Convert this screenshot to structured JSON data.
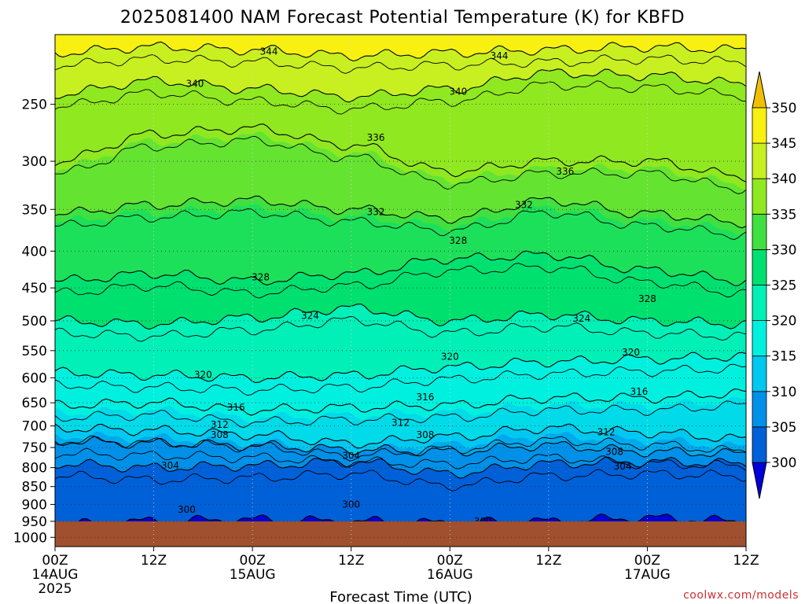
{
  "chart_data": {
    "type": "heatmap",
    "title": "2025081400 NAM Forecast Potential Temperature (K) for KBFD",
    "xlabel": "Forecast Time (UTC)",
    "ylabel": "",
    "credit": "coolwx.com/models",
    "x_ticks": [
      {
        "hour": 0,
        "line1": "00Z",
        "line2": "14AUG",
        "line3": "2025"
      },
      {
        "hour": 12,
        "line1": "12Z",
        "line2": "",
        "line3": ""
      },
      {
        "hour": 24,
        "line1": "00Z",
        "line2": "15AUG",
        "line3": ""
      },
      {
        "hour": 36,
        "line1": "12Z",
        "line2": "",
        "line3": ""
      },
      {
        "hour": 48,
        "line1": "00Z",
        "line2": "16AUG",
        "line3": ""
      },
      {
        "hour": 60,
        "line1": "12Z",
        "line2": "",
        "line3": ""
      },
      {
        "hour": 72,
        "line1": "00Z",
        "line2": "17AUG",
        "line3": ""
      },
      {
        "hour": 84,
        "line1": "12Z",
        "line2": "",
        "line3": ""
      }
    ],
    "xlim": [
      0,
      84
    ],
    "y_ticks": [
      250,
      300,
      350,
      400,
      450,
      500,
      550,
      600,
      650,
      700,
      750,
      800,
      850,
      900,
      950,
      1000
    ],
    "ylim_hpa": [
      200,
      1030
    ],
    "y_scale": "log",
    "ground_level_hpa": 950,
    "colorbar": {
      "labels": [
        300,
        305,
        310,
        315,
        320,
        325,
        330,
        335,
        340,
        345,
        350
      ],
      "colors": [
        "#0000d8",
        "#0060d8",
        "#0090e8",
        "#00c8f0",
        "#00f0e0",
        "#00f0b8",
        "#00e070",
        "#40e040",
        "#90e820",
        "#c8ef20",
        "#f8f010",
        "#f0c000"
      ]
    },
    "series": [
      {
        "level": 300,
        "values": [
          960,
          950,
          945,
          950,
          955,
          950,
          940,
          950
        ]
      },
      {
        "level": 304,
        "values": [
          790,
          800,
          795,
          785,
          815,
          790,
          785,
          790
        ]
      },
      {
        "level": 308,
        "values": [
          735,
          740,
          745,
          755,
          760,
          745,
          760,
          765
        ]
      },
      {
        "level": 312,
        "values": [
          705,
          710,
          720,
          740,
          725,
          705,
          715,
          730
        ]
      },
      {
        "level": 316,
        "values": [
          655,
          650,
          665,
          660,
          655,
          640,
          640,
          630
        ]
      },
      {
        "level": 320,
        "values": [
          590,
          595,
          600,
          595,
          580,
          570,
          565,
          560
        ]
      },
      {
        "level": 324,
        "values": [
          500,
          505,
          495,
          480,
          500,
          490,
          500,
          505
        ]
      },
      {
        "level": 328,
        "values": [
          440,
          430,
          440,
          430,
          410,
          405,
          425,
          440
        ]
      },
      {
        "level": 332,
        "values": [
          355,
          345,
          340,
          350,
          360,
          340,
          355,
          365
        ]
      },
      {
        "level": 336,
        "values": [
          300,
          275,
          270,
          285,
          310,
          300,
          300,
          315
        ]
      },
      {
        "level": 340,
        "values": [
          242,
          232,
          238,
          244,
          238,
          226,
          228,
          234
        ]
      },
      {
        "level": 344,
        "values": [
          212,
          208,
          210,
          214,
          212,
          210,
          208,
          210
        ]
      }
    ],
    "contour_labels": [
      {
        "text": "344",
        "hour": 26,
        "hpa": 211
      },
      {
        "text": "344",
        "hour": 54,
        "hpa": 214
      },
      {
        "text": "340",
        "hour": 17,
        "hpa": 234
      },
      {
        "text": "340",
        "hour": 49,
        "hpa": 240
      },
      {
        "text": "336",
        "hour": 39,
        "hpa": 278
      },
      {
        "text": "336",
        "hour": 62,
        "hpa": 310
      },
      {
        "text": "332",
        "hour": 39,
        "hpa": 353
      },
      {
        "text": "332",
        "hour": 57,
        "hpa": 345
      },
      {
        "text": "328",
        "hour": 49,
        "hpa": 387
      },
      {
        "text": "328",
        "hour": 25,
        "hpa": 435
      },
      {
        "text": "328",
        "hour": 72,
        "hpa": 466
      },
      {
        "text": "324",
        "hour": 31,
        "hpa": 492
      },
      {
        "text": "324",
        "hour": 64,
        "hpa": 496
      },
      {
        "text": "320",
        "hour": 18,
        "hpa": 594
      },
      {
        "text": "320",
        "hour": 48,
        "hpa": 561
      },
      {
        "text": "320",
        "hour": 70,
        "hpa": 553
      },
      {
        "text": "316",
        "hour": 22,
        "hpa": 660
      },
      {
        "text": "316",
        "hour": 45,
        "hpa": 638
      },
      {
        "text": "316",
        "hour": 71,
        "hpa": 627
      },
      {
        "text": "312",
        "hour": 20,
        "hpa": 697
      },
      {
        "text": "312",
        "hour": 42,
        "hpa": 693
      },
      {
        "text": "312",
        "hour": 67,
        "hpa": 714
      },
      {
        "text": "308",
        "hour": 20,
        "hpa": 720
      },
      {
        "text": "308",
        "hour": 45,
        "hpa": 720
      },
      {
        "text": "308",
        "hour": 68,
        "hpa": 760
      },
      {
        "text": "304",
        "hour": 14,
        "hpa": 795
      },
      {
        "text": "304",
        "hour": 36,
        "hpa": 770
      },
      {
        "text": "304",
        "hour": 69,
        "hpa": 797
      },
      {
        "text": "300",
        "hour": 16,
        "hpa": 915
      },
      {
        "text": "300",
        "hour": 36,
        "hpa": 900
      },
      {
        "text": "300",
        "hour": 52,
        "hpa": 950
      }
    ]
  }
}
